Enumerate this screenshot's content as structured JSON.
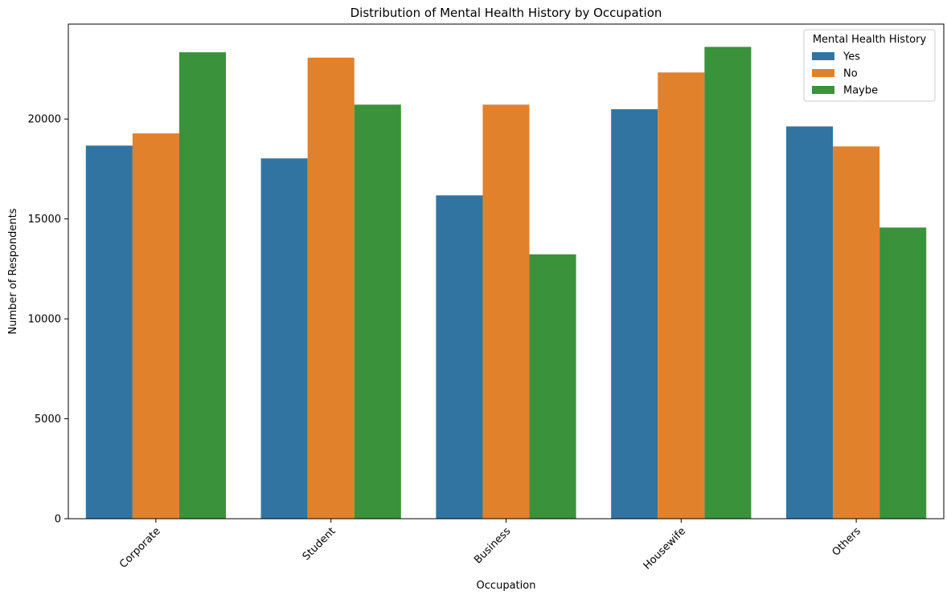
{
  "chart_data": {
    "type": "bar",
    "title": "Distribution of Mental Health History by Occupation",
    "xlabel": "Occupation",
    "ylabel": "Number of Respondents",
    "categories": [
      "Corporate",
      "Student",
      "Business",
      "Housewife",
      "Others"
    ],
    "ylim": [
      0,
      24750
    ],
    "yticks": [
      0,
      5000,
      10000,
      15000,
      20000
    ],
    "ytick_labels": [
      "0",
      "5000",
      "10000",
      "15000",
      "20000"
    ],
    "grid": false,
    "xtick_rotation": "45 degrees",
    "legend": {
      "title": "Mental Health History",
      "placement": "top-right"
    },
    "series": [
      {
        "name": "Yes",
        "color": "#3274a1",
        "values": [
          18670,
          18030,
          16180,
          20490,
          19630
        ]
      },
      {
        "name": "No",
        "color": "#e1812c",
        "values": [
          19280,
          23070,
          20720,
          22330,
          18630
        ]
      },
      {
        "name": "Maybe",
        "color": "#3a923a",
        "values": [
          23340,
          20720,
          13230,
          23610,
          14570
        ]
      }
    ]
  }
}
